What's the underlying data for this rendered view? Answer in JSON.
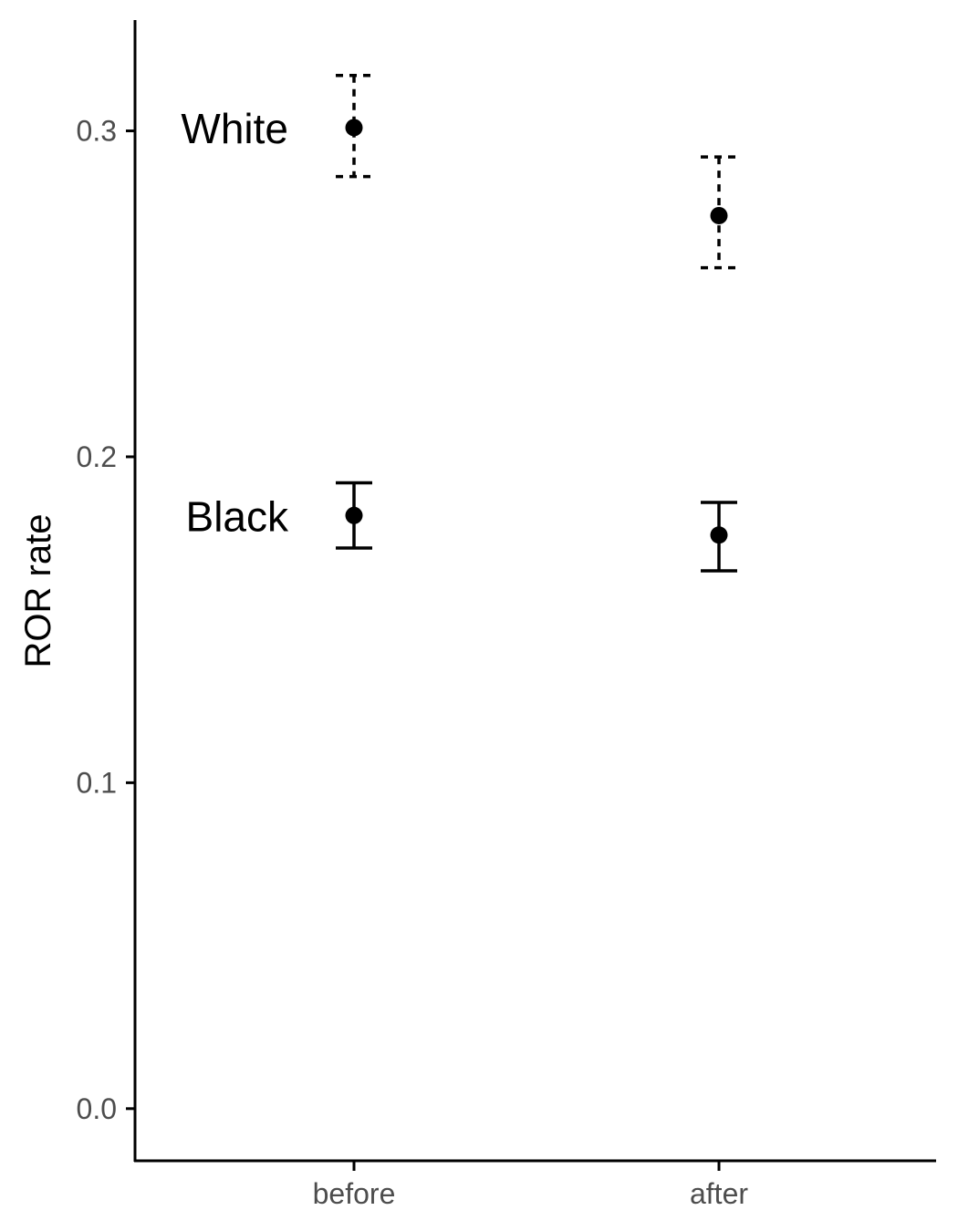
{
  "chart_data": {
    "type": "scatter",
    "title": "",
    "xlabel": "",
    "ylabel": "ROR rate",
    "categories": [
      "before",
      "after"
    ],
    "ylim": [
      -0.016,
      0.334
    ],
    "yticks": [
      "0.0",
      "0.1",
      "0.2",
      "0.3"
    ],
    "grid": false,
    "legend": "none",
    "series": [
      {
        "name": "White",
        "line_style": "dashed",
        "values": [
          0.301,
          0.274
        ],
        "lower": [
          0.286,
          0.258
        ],
        "upper": [
          0.317,
          0.292
        ]
      },
      {
        "name": "Black",
        "line_style": "solid",
        "values": [
          0.182,
          0.176
        ],
        "lower": [
          0.172,
          0.165
        ],
        "upper": [
          0.192,
          0.186
        ]
      }
    ],
    "colors": {
      "points": "#000000",
      "axis": "#000000",
      "tick_text": "#4d4d4d"
    }
  }
}
